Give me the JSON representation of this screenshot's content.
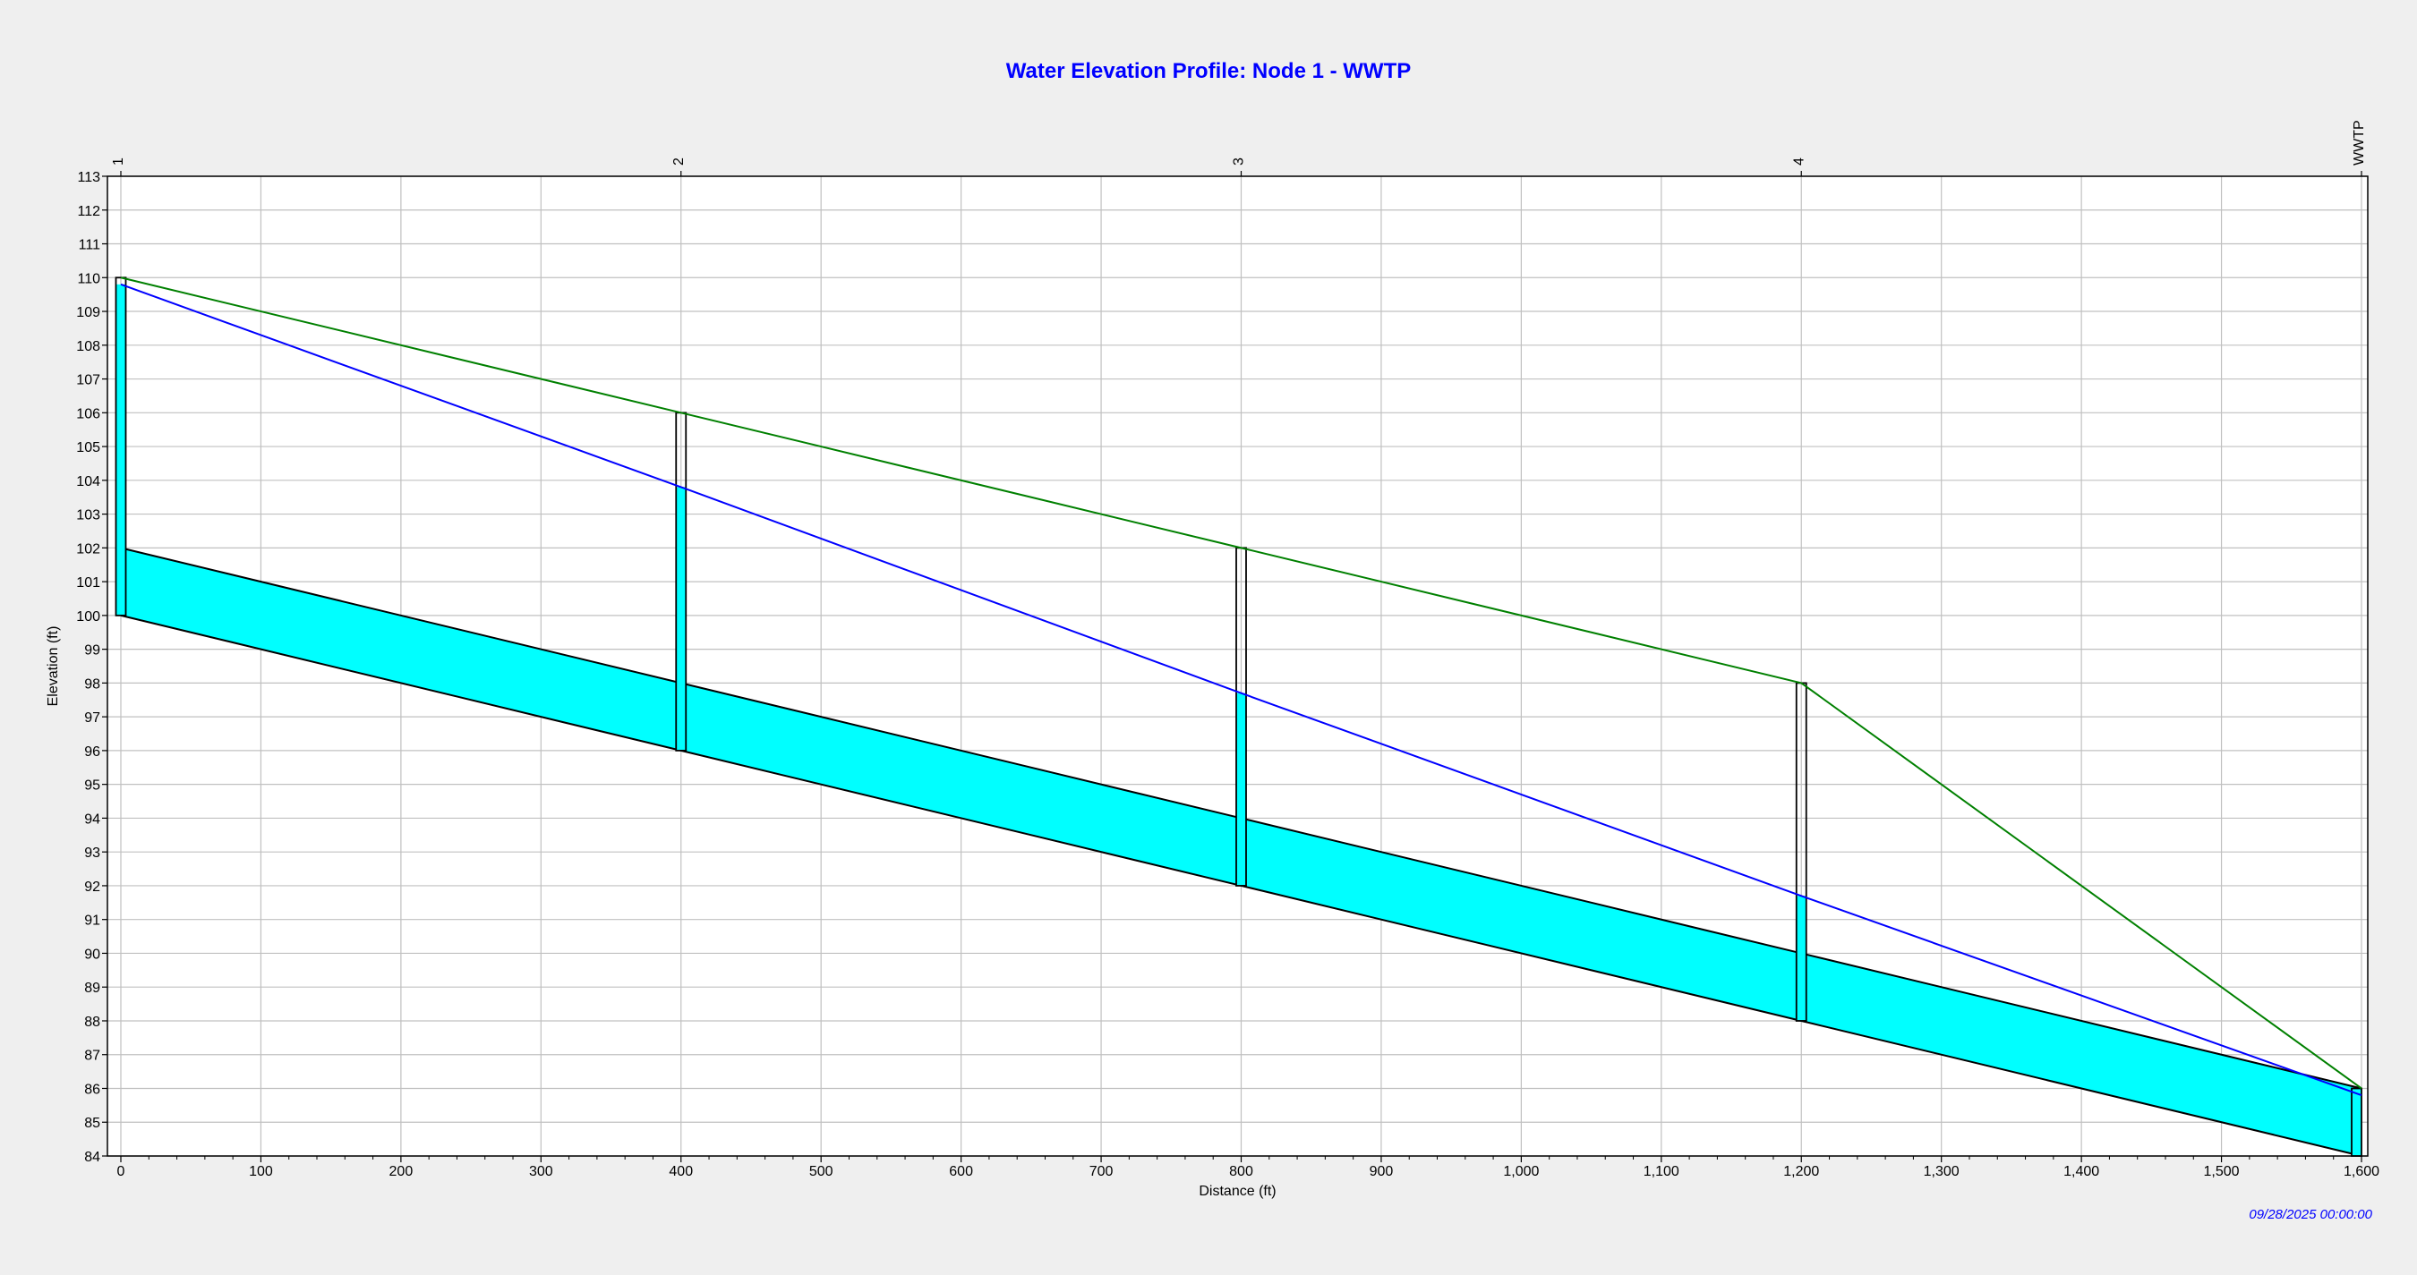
{
  "chart_data": {
    "type": "line",
    "title": "Water Elevation Profile: Node 1 - WWTP",
    "xlabel": "Distance (ft)",
    "ylabel": "Elevation (ft)",
    "timestamp": "09/28/2025 00:00:00",
    "xlim": [
      0,
      1600
    ],
    "ylim": [
      84,
      113
    ],
    "x_ticks": [
      0,
      100,
      200,
      300,
      400,
      500,
      600,
      700,
      800,
      900,
      1000,
      1100,
      1200,
      1300,
      1400,
      1500,
      1600
    ],
    "x_tick_labels": [
      "0",
      "100",
      "200",
      "300",
      "400",
      "500",
      "600",
      "700",
      "800",
      "900",
      "1,000",
      "1,100",
      "1,200",
      "1,300",
      "1,400",
      "1,500",
      "1,600"
    ],
    "y_ticks": [
      84,
      85,
      86,
      87,
      88,
      89,
      90,
      91,
      92,
      93,
      94,
      95,
      96,
      97,
      98,
      99,
      100,
      101,
      102,
      103,
      104,
      105,
      106,
      107,
      108,
      109,
      110,
      111,
      112,
      113
    ],
    "grid": true,
    "nodes": [
      {
        "name": "1",
        "x": 0,
        "invert": 100,
        "rim": 110,
        "water": 109.8
      },
      {
        "name": "2",
        "x": 400,
        "invert": 96,
        "rim": 106,
        "water": 103.8
      },
      {
        "name": "3",
        "x": 800,
        "invert": 92,
        "rim": 102,
        "water": 97.7
      },
      {
        "name": "4",
        "x": 1200,
        "invert": 88,
        "rim": 98,
        "water": 91.7
      },
      {
        "name": "WWTP",
        "x": 1600,
        "invert": 84,
        "rim": 86,
        "water": 85.8
      }
    ],
    "conduits": [
      {
        "from": "1",
        "to": "2",
        "invert_up": 100,
        "invert_down": 96,
        "crown_up": 102,
        "crown_down": 98
      },
      {
        "from": "2",
        "to": "3",
        "invert_up": 96,
        "invert_down": 92,
        "crown_up": 98,
        "crown_down": 94
      },
      {
        "from": "3",
        "to": "4",
        "invert_up": 92,
        "invert_down": 88,
        "crown_up": 94,
        "crown_down": 90
      },
      {
        "from": "4",
        "to": "WWTP",
        "invert_up": 88,
        "invert_down": 84,
        "crown_up": 90,
        "crown_down": 86
      }
    ],
    "series": [
      {
        "type": "ground",
        "color": "#008000",
        "x": [
          0,
          400,
          800,
          1200,
          1600
        ],
        "y": [
          110,
          106,
          102,
          98,
          86
        ]
      },
      {
        "type": "hgl",
        "color": "#0000ff",
        "x": [
          0,
          400,
          800,
          1200,
          1600
        ],
        "y": [
          109.8,
          103.8,
          97.7,
          91.7,
          85.8
        ]
      }
    ],
    "colors": {
      "water": "#00ffff",
      "outline": "#000000",
      "grid": "#c0c0c0"
    }
  }
}
